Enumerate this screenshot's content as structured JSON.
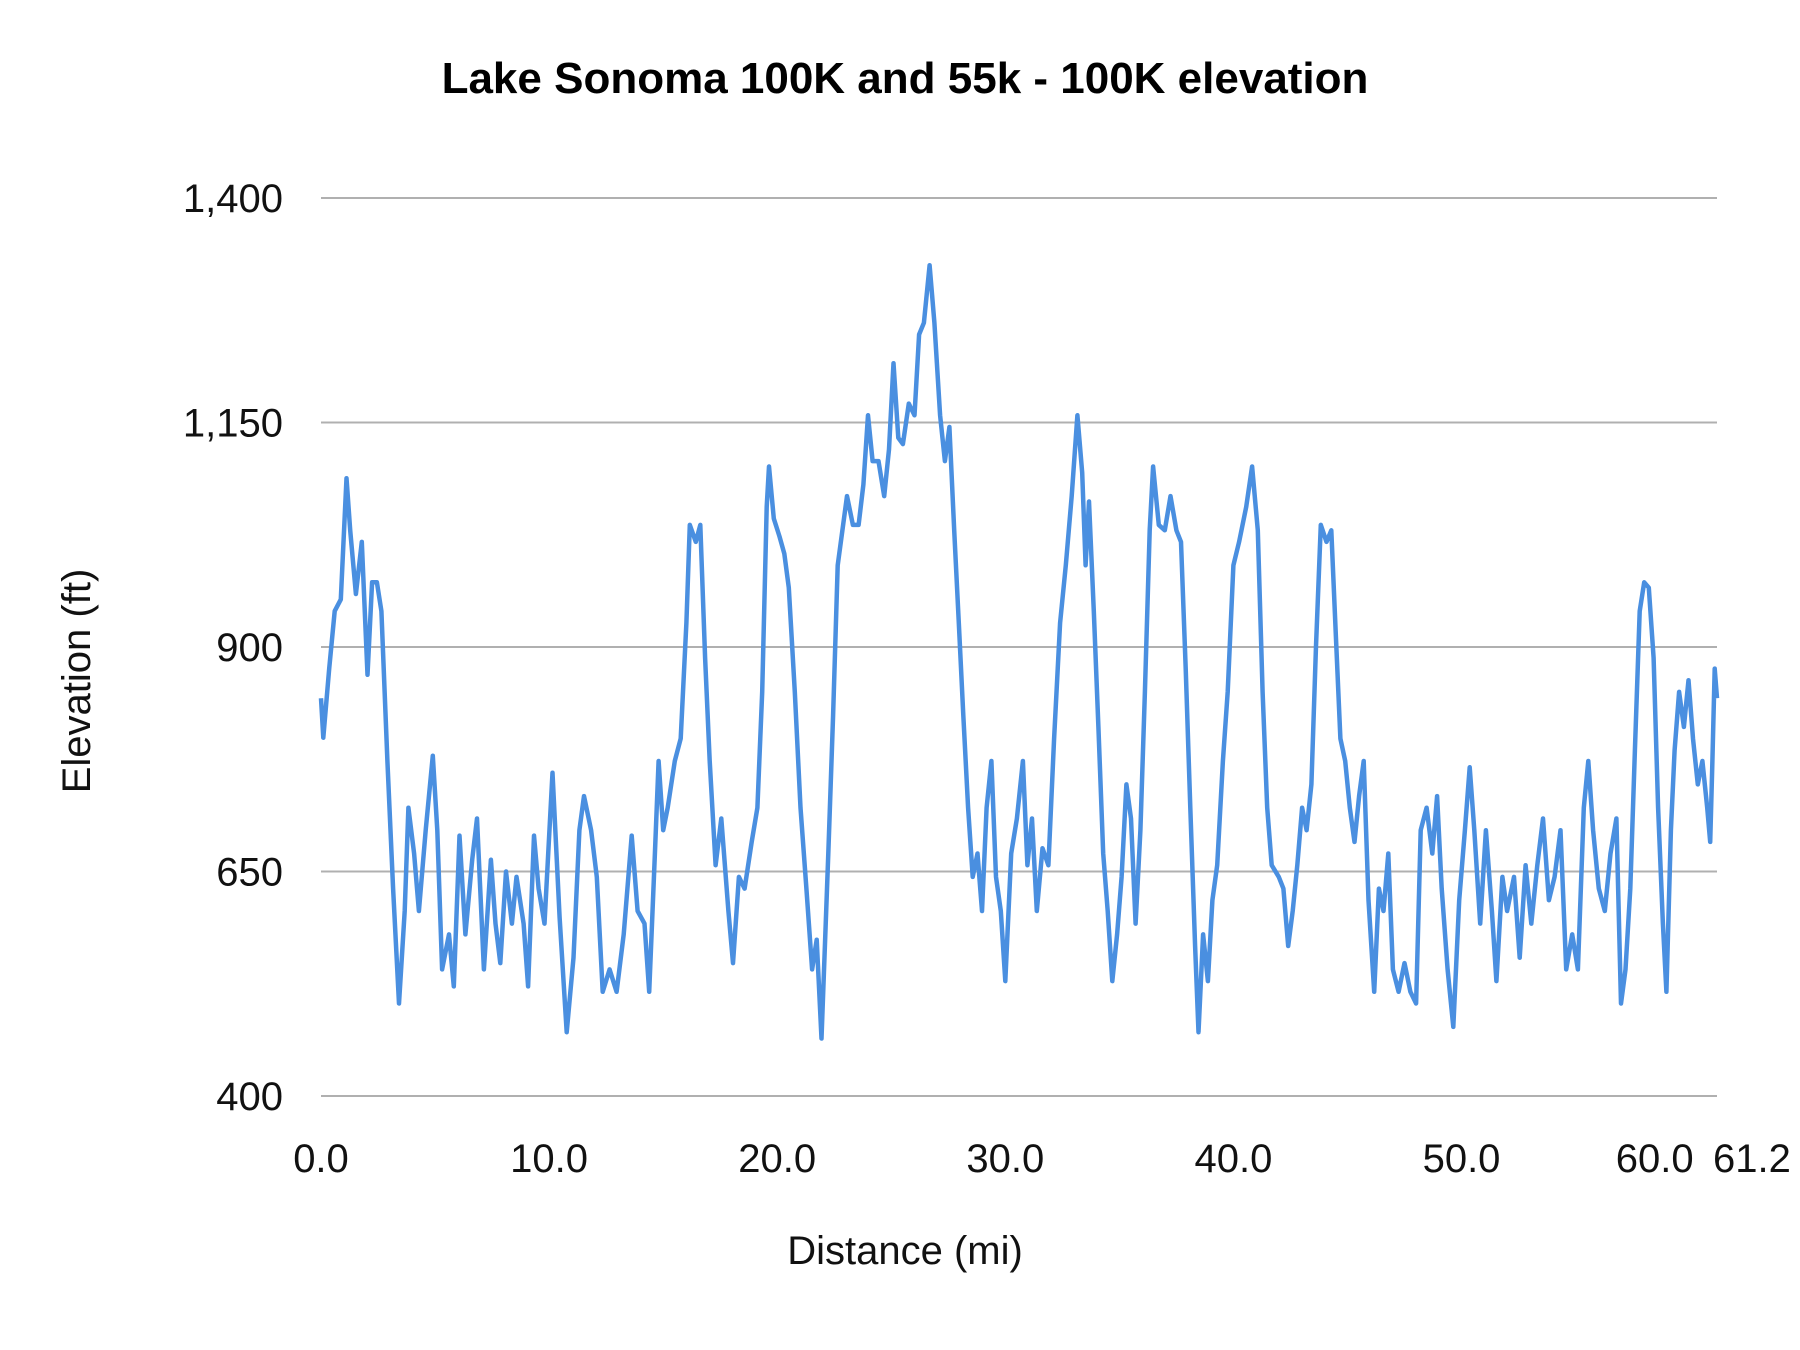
{
  "chart_data": {
    "type": "line",
    "title": "Lake Sonoma 100K and 55k - 100K elevation",
    "xlabel": "Distance (mi)",
    "ylabel": "Elevation (ft)",
    "xlim": [
      0,
      61.2
    ],
    "ylim": [
      400,
      1400
    ],
    "x_ticks": [
      "0.0",
      "10.0",
      "20.0",
      "30.0",
      "40.0",
      "50.0",
      "60.0",
      "61.2"
    ],
    "x_tick_values": [
      0,
      10,
      20,
      30,
      40,
      50,
      60,
      61.2
    ],
    "y_ticks": [
      "400",
      "650",
      "900",
      "1,150",
      "1,400"
    ],
    "y_tick_values": [
      400,
      650,
      900,
      1150,
      1400
    ],
    "grid": "horizontal",
    "legend": "none",
    "color": "#4A8FE0",
    "series": [
      {
        "x": [
          0,
          0.1,
          0.36,
          0.6,
          0.87,
          1.12,
          1.28,
          1.53,
          1.79,
          2.04,
          2.24,
          2.45,
          2.65,
          2.91,
          3.16,
          3.42,
          3.67,
          3.83,
          4.08,
          4.29,
          4.59,
          4.9,
          5.1,
          5.31,
          5.61,
          5.82,
          6.07,
          6.33,
          6.63,
          6.84,
          7.14,
          7.45,
          7.65,
          7.86,
          8.11,
          8.37,
          8.57,
          8.88,
          9.08,
          9.34,
          9.54,
          9.8,
          10.15,
          10.46,
          10.77,
          11.07,
          11.33,
          11.53,
          11.84,
          12.09,
          12.35,
          12.65,
          12.96,
          13.27,
          13.62,
          13.88,
          14.18,
          14.39,
          14.64,
          14.8,
          15.0,
          15.2,
          15.51,
          15.77,
          16.02,
          16.17,
          16.43,
          16.63,
          16.84,
          17.04,
          17.3,
          17.55,
          17.86,
          18.06,
          18.32,
          18.57,
          18.88,
          19.13,
          19.34,
          19.54,
          19.64,
          19.85,
          20.1,
          20.31,
          20.51,
          20.77,
          21.02,
          21.28,
          21.53,
          21.73,
          21.94,
          22.24,
          22.45,
          22.65,
          22.86,
          23.06,
          23.32,
          23.57,
          23.78,
          23.98,
          24.18,
          24.44,
          24.69,
          24.9,
          25.1,
          25.31,
          25.51,
          25.77,
          26.02,
          26.22,
          26.43,
          26.68,
          26.89,
          27.14,
          27.35,
          27.55,
          27.76,
          27.96,
          28.16,
          28.37,
          28.57,
          28.78,
          28.98,
          29.18,
          29.39,
          29.59,
          29.8,
          30.0,
          30.26,
          30.51,
          30.77,
          30.97,
          31.17,
          31.38,
          31.63,
          31.89,
          32.14,
          32.4,
          32.65,
          32.91,
          33.16,
          33.37,
          33.52,
          33.67,
          33.88,
          34.08,
          34.29,
          34.49,
          34.69,
          34.9,
          35.1,
          35.31,
          35.51,
          35.71,
          35.92,
          36.12,
          36.33,
          36.48,
          36.73,
          36.99,
          37.24,
          37.5,
          37.7,
          37.91,
          38.11,
          38.32,
          38.47,
          38.67,
          38.88,
          39.08,
          39.29,
          39.54,
          39.75,
          40.0,
          40.25,
          40.56,
          40.82,
          41.07,
          41.28,
          41.48,
          41.68,
          41.99,
          42.19,
          42.4,
          42.6,
          42.8,
          43.01,
          43.21,
          43.42,
          43.62,
          43.83,
          44.08,
          44.29,
          44.49,
          44.69,
          44.9,
          45.1,
          45.31,
          45.51,
          45.71,
          45.92,
          46.17,
          46.38,
          46.58,
          46.79,
          46.99,
          47.24,
          47.5,
          47.76,
          48.01,
          48.21,
          48.47,
          48.72,
          48.93,
          49.13,
          49.39,
          49.64,
          49.9,
          50.15,
          50.36,
          50.56,
          50.82,
          51.07,
          51.33,
          51.53,
          51.79,
          52.0,
          52.3,
          52.55,
          52.81,
          53.06,
          53.32,
          53.57,
          53.83,
          54.08,
          54.34,
          54.59,
          54.85,
          55.1,
          55.36,
          55.56,
          55.77,
          56.02,
          56.28,
          56.53,
          56.79,
          56.99,
          57.19,
          57.4,
          57.6,
          57.81,
          58.01,
          58.21,
          58.42,
          58.62,
          58.83,
          58.98,
          59.18,
          59.34,
          59.54,
          59.75,
          59.95,
          60.15,
          60.36,
          60.56,
          60.77,
          60.9,
          61.0,
          61.1,
          61.2
        ],
        "y": [
          843,
          799,
          876,
          940,
          953,
          1088,
          1030,
          959,
          1017,
          869,
          972,
          972,
          940,
          773,
          631,
          503,
          606,
          721,
          670,
          606,
          696,
          779,
          696,
          541,
          580,
          522,
          690,
          580,
          663,
          709,
          541,
          663,
          592,
          548,
          650,
          592,
          644,
          592,
          522,
          690,
          631,
          592,
          760,
          599,
          471,
          554,
          696,
          734,
          696,
          644,
          516,
          541,
          516,
          580,
          690,
          606,
          592,
          516,
          670,
          773,
          696,
          721,
          773,
          798,
          927,
          1036,
          1017,
          1036,
          888,
          773,
          657,
          709,
          606,
          548,
          644,
          631,
          683,
          721,
          850,
          1056,
          1101,
          1043,
          1023,
          1004,
          966,
          850,
          721,
          631,
          541,
          574,
          464,
          670,
          824,
          991,
          1030,
          1068,
          1036,
          1036,
          1081,
          1158,
          1107,
          1107,
          1068,
          1120,
          1216,
          1133,
          1126,
          1171,
          1158,
          1248,
          1261,
          1325,
          1261,
          1158,
          1107,
          1145,
          1030,
          927,
          824,
          721,
          644,
          670,
          606,
          721,
          773,
          644,
          606,
          528,
          670,
          709,
          773,
          657,
          709,
          606,
          676,
          657,
          798,
          927,
          991,
          1068,
          1158,
          1094,
          991,
          1062,
          940,
          811,
          670,
          606,
          528,
          580,
          644,
          747,
          709,
          592,
          696,
          850,
          1030,
          1101,
          1036,
          1030,
          1068,
          1030,
          1017,
          876,
          721,
          567,
          471,
          580,
          528,
          618,
          657,
          773,
          850,
          991,
          1017,
          1056,
          1101,
          1030,
          850,
          721,
          657,
          644,
          631,
          567,
          606,
          657,
          721,
          696,
          747,
          901,
          1036,
          1017,
          1030,
          914,
          798,
          773,
          721,
          683,
          734,
          773,
          618,
          516,
          631,
          606,
          670,
          541,
          516,
          548,
          516,
          503,
          696,
          721,
          670,
          734,
          631,
          541,
          477,
          618,
          696,
          766,
          696,
          592,
          696,
          606,
          528,
          644,
          606,
          644,
          554,
          657,
          592,
          657,
          709,
          618,
          644,
          696,
          541,
          580,
          541,
          721,
          773,
          696,
          631,
          606,
          670,
          709,
          503,
          541,
          631,
          785,
          940,
          972,
          966,
          888,
          721,
          592,
          516,
          696,
          785,
          850,
          811,
          863,
          798,
          747,
          773,
          721,
          683,
          773,
          876,
          843
        ]
      }
    ]
  }
}
